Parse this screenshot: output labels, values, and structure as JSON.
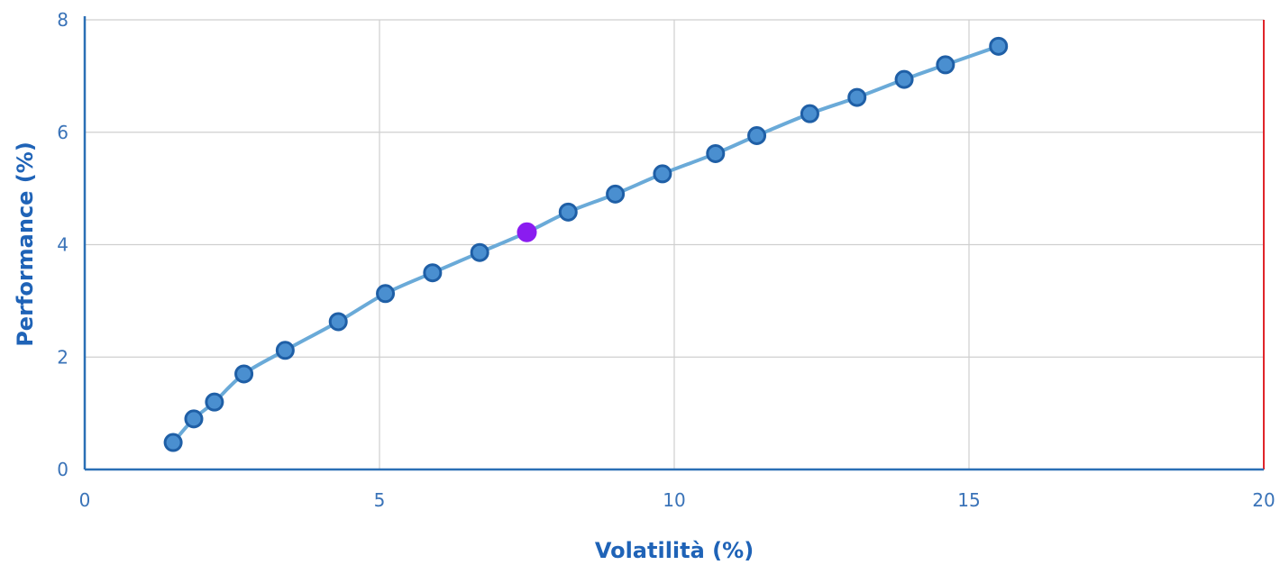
{
  "chart_data": {
    "type": "line",
    "xlabel": "Volatilità (%)",
    "ylabel": "Performance (%)",
    "xlim": [
      0,
      20
    ],
    "ylim": [
      0,
      8
    ],
    "x_ticks": [
      0,
      5,
      10,
      15,
      20
    ],
    "y_ticks": [
      0,
      2,
      4,
      6,
      8
    ],
    "grid": true,
    "series": [
      {
        "points": [
          {
            "x": 1.5,
            "y": 0.48
          },
          {
            "x": 1.85,
            "y": 0.9
          },
          {
            "x": 2.2,
            "y": 1.2
          },
          {
            "x": 2.7,
            "y": 1.7
          },
          {
            "x": 3.4,
            "y": 2.12
          },
          {
            "x": 4.3,
            "y": 2.63
          },
          {
            "x": 5.1,
            "y": 3.13
          },
          {
            "x": 5.9,
            "y": 3.5
          },
          {
            "x": 6.7,
            "y": 3.86
          },
          {
            "x": 7.5,
            "y": 4.22
          },
          {
            "x": 8.2,
            "y": 4.58
          },
          {
            "x": 9.0,
            "y": 4.9
          },
          {
            "x": 9.8,
            "y": 5.26
          },
          {
            "x": 10.7,
            "y": 5.62
          },
          {
            "x": 11.4,
            "y": 5.94
          },
          {
            "x": 12.3,
            "y": 6.33
          },
          {
            "x": 13.1,
            "y": 6.62
          },
          {
            "x": 13.9,
            "y": 6.94
          },
          {
            "x": 14.6,
            "y": 7.2
          },
          {
            "x": 15.5,
            "y": 7.53
          }
        ],
        "highlight_index": 9
      }
    ],
    "colors": {
      "line": "#6aaad8",
      "marker_fill": "#4a8fd0",
      "marker_stroke": "#1f5fa6",
      "highlight": "#8a1cf0",
      "grid": "#cfcfcf",
      "axis": "#2a6fb5",
      "right_border": "#e0242a",
      "tick_text": "#3a73b8",
      "title_text": "#1f63b7"
    }
  }
}
